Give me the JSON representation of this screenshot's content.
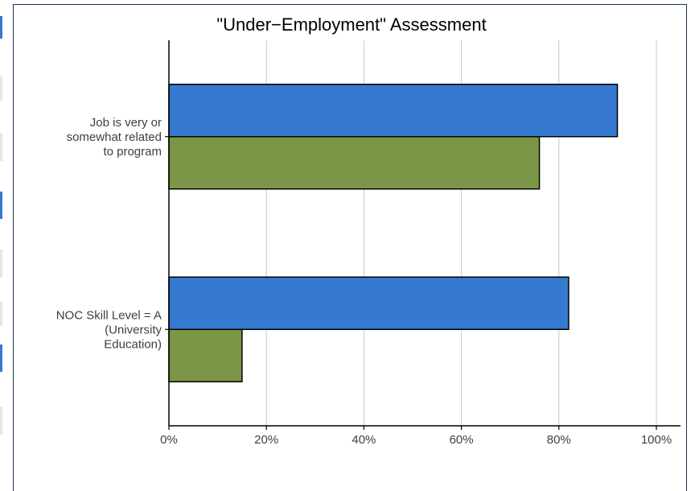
{
  "chart_data": {
    "type": "bar",
    "orientation": "horizontal",
    "title": "\"Under−Employment\" Assessment",
    "categories": [
      [
        "Job is very or",
        "somewhat related",
        "to program"
      ],
      [
        "NOC Skill Level = A",
        "(University",
        "Education)"
      ]
    ],
    "series": [
      {
        "values": [
          92,
          82
        ],
        "color": "#3579d0"
      },
      {
        "values": [
          76,
          15
        ],
        "color": "#7b9646"
      }
    ],
    "xlim": [
      0,
      100
    ],
    "x_ticks": [
      "0%",
      "20%",
      "40%",
      "60%",
      "80%",
      "100%"
    ],
    "grid": true,
    "legend": "none"
  }
}
